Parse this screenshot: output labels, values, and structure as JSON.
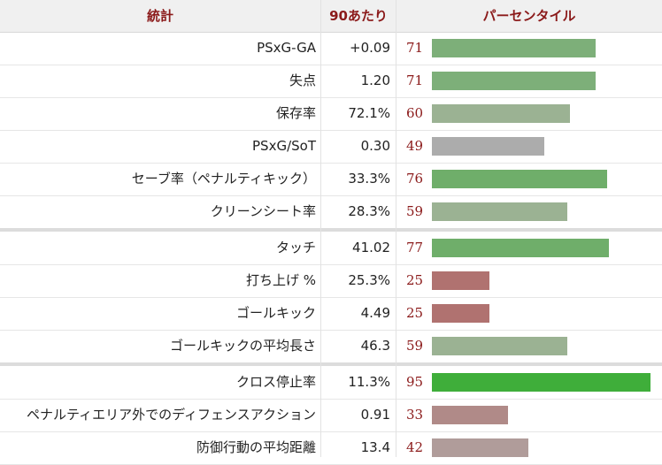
{
  "header": {
    "stat_label": "統計",
    "per90_label": "90あたり",
    "percentile_label": "パーセンタイル"
  },
  "groups": [
    {
      "rows": [
        {
          "label": "PSxG-GA",
          "value": "+0.09",
          "percentile": 71,
          "color": "#7daf79"
        },
        {
          "label": "失点",
          "value": "1.20",
          "percentile": 71,
          "color": "#7daf79"
        },
        {
          "label": "保存率",
          "value": "72.1%",
          "percentile": 60,
          "color": "#9bb293"
        },
        {
          "label": "PSxG/SoT",
          "value": "0.30",
          "percentile": 49,
          "color": "#acacac"
        },
        {
          "label": "セーブ率（ペナルティキック）",
          "value": "33.3%",
          "percentile": 76,
          "color": "#6fae6a"
        },
        {
          "label": "クリーンシート率",
          "value": "28.3%",
          "percentile": 59,
          "color": "#9bb293"
        }
      ]
    },
    {
      "rows": [
        {
          "label": "タッチ",
          "value": "41.02",
          "percentile": 77,
          "color": "#6fae6a"
        },
        {
          "label": "打ち上げ %",
          "value": "25.3%",
          "percentile": 25,
          "color": "#b07270"
        },
        {
          "label": "ゴールキック",
          "value": "4.49",
          "percentile": 25,
          "color": "#b07270"
        },
        {
          "label": "ゴールキックの平均長さ",
          "value": "46.3",
          "percentile": 59,
          "color": "#9bb293"
        }
      ]
    },
    {
      "rows": [
        {
          "label": "クロス停止率",
          "value": "11.3%",
          "percentile": 95,
          "color": "#3fae3a"
        },
        {
          "label": "ペナルティエリア外でのディフェンスアクション",
          "value": "0.91",
          "percentile": 33,
          "color": "#b08a88"
        },
        {
          "label": "防御行動の平均距離",
          "value": "13.4",
          "percentile": 42,
          "color": "#b09c9a"
        }
      ]
    }
  ]
}
